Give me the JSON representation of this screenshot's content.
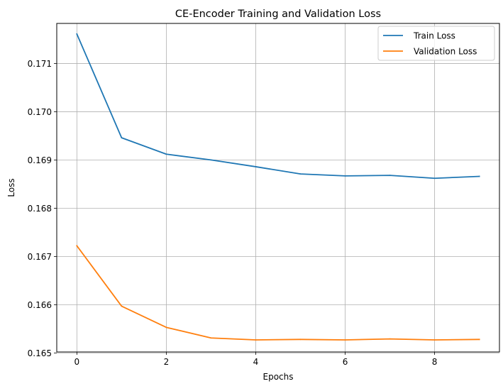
{
  "chart_data": {
    "type": "line",
    "title": "CE-Encoder Training and Validation Loss",
    "xlabel": "Epochs",
    "ylabel": "Loss",
    "x": [
      0,
      1,
      2,
      3,
      4,
      5,
      6,
      7,
      8,
      9
    ],
    "xlim": [
      -0.45,
      9.45
    ],
    "ylim": [
      0.16502,
      0.17183
    ],
    "xticks": [
      0,
      2,
      4,
      6,
      8
    ],
    "yticks": [
      0.165,
      0.166,
      0.167,
      0.168,
      0.169,
      0.17,
      0.171
    ],
    "ytick_labels": [
      "0.165",
      "0.166",
      "0.167",
      "0.168",
      "0.169",
      "0.170",
      "0.171"
    ],
    "grid": true,
    "legend_position": "top-right",
    "series": [
      {
        "name": "Train Loss",
        "color": "#1f77b4",
        "values": [
          0.17161,
          0.16946,
          0.16912,
          0.169,
          0.16886,
          0.16871,
          0.16867,
          0.16868,
          0.16862,
          0.16866
        ]
      },
      {
        "name": "Validation Loss",
        "color": "#ff7f0e",
        "values": [
          0.16722,
          0.16597,
          0.16553,
          0.16531,
          0.16527,
          0.16528,
          0.16527,
          0.16529,
          0.16527,
          0.16528
        ]
      }
    ]
  }
}
